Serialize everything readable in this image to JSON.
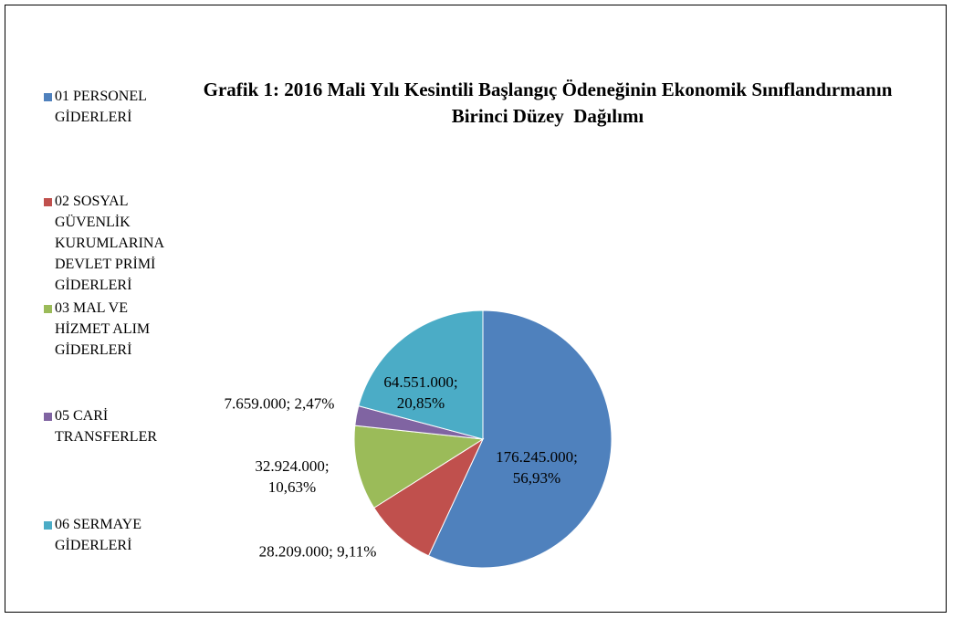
{
  "chart_data": {
    "type": "pie",
    "title": "Grafik 1: 2016 Mali Yılı Kesintili Başlangıç Ödeneğinin Ekonomik Sınıflandırmanın Birinci Düzey  Dağılımı",
    "categories": [
      "01 PERSONEL GİDERLERİ",
      "02 SOSYAL GÜVENLİK KURUMLARINA DEVLET PRİMİ GİDERLERİ",
      "03 MAL VE HİZMET ALIM GİDERLERİ",
      "05 CARİ TRANSFERLER",
      "06 SERMAYE GİDERLERİ"
    ],
    "values": [
      176245000,
      28209000,
      32924000,
      7659000,
      64551000
    ],
    "value_labels": [
      "176.245.000; 56,93%",
      "28.209.000; 9,11%",
      "32.924.000; 10,63%",
      "7.659.000; 2,47%",
      "64.551.000; 20,85%"
    ],
    "colors": [
      "#4f81bd",
      "#c0504d",
      "#9bbb59",
      "#8064a2",
      "#4bacc6"
    ],
    "legend": "left"
  }
}
